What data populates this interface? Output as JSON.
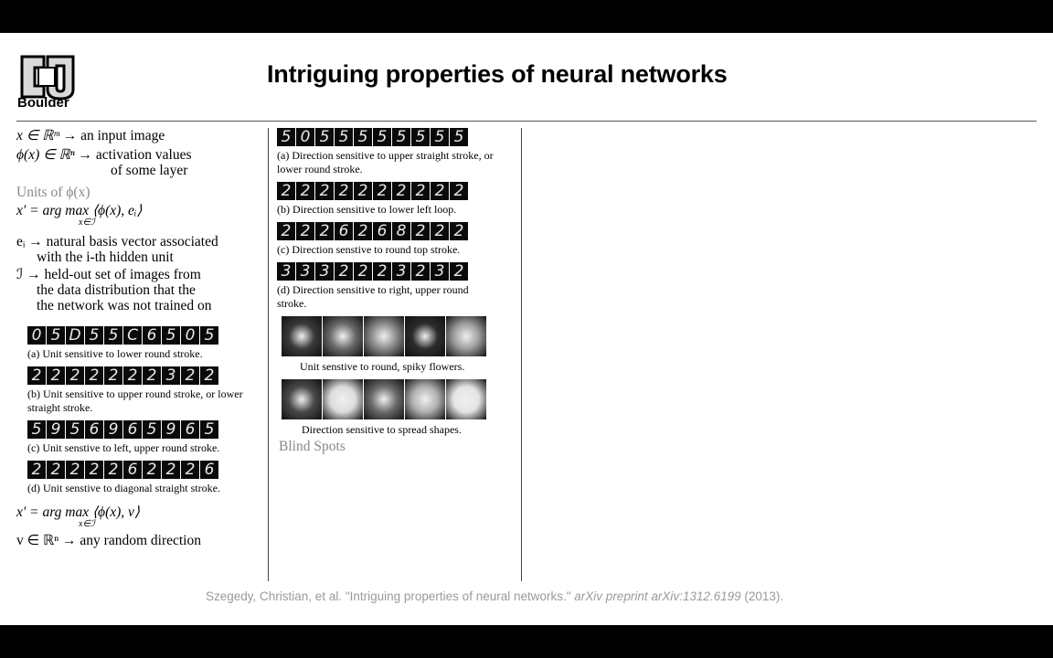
{
  "header": {
    "logo_text": "Boulder",
    "title": "Intriguing properties of neural networks"
  },
  "left": {
    "eq1_rhs": "→ an input image",
    "eq2_rhs": "→ activation values",
    "eq2_cont": "of some layer",
    "units_heading": "Units of ϕ(x)",
    "eq3_lhs": "x′ = arg max ⟨ϕ(x), eᵢ⟩",
    "eq3_sub": "x∈ℐ",
    "ei_line1": "eᵢ → natural basis vector associated",
    "ei_line2": "with the i-th hidden unit",
    "I_line1": "ℐ → held-out set of images from",
    "I_line2": "the data distribution that the",
    "I_line3": "the network was not trained on",
    "eq4_lhs": "x′ = arg max ⟨ϕ(x), v⟩",
    "eq4_sub": "x∈ℐ",
    "eq5": "v ∈ ℝⁿ → any random direction",
    "eq1_lhs": "x ∈ ℝᵐ",
    "eq2_lhs": "ϕ(x) ∈ ℝⁿ"
  },
  "left_figures": [
    {
      "digits": [
        "0",
        "5",
        "D",
        "5",
        "5",
        "C",
        "6",
        "5",
        "0",
        "5"
      ],
      "caption": "(a) Unit sensitive to lower round stroke."
    },
    {
      "digits": [
        "2",
        "2",
        "2",
        "2",
        "2",
        "2",
        "2",
        "3",
        "2",
        "2"
      ],
      "caption": "(b) Unit sensitive to upper round stroke, or lower straight stroke."
    },
    {
      "digits": [
        "5",
        "9",
        "5",
        "6",
        "9",
        "6",
        "5",
        "9",
        "6",
        "5"
      ],
      "caption": "(c) Unit senstive to left, upper round stroke."
    },
    {
      "digits": [
        "2",
        "2",
        "2",
        "2",
        "2",
        "6",
        "2",
        "2",
        "2",
        "6"
      ],
      "caption": "(d) Unit senstive to diagonal straight stroke."
    }
  ],
  "right_figures": [
    {
      "digits": [
        "5",
        "0",
        "5",
        "5",
        "5",
        "5",
        "5",
        "5",
        "5",
        "5"
      ],
      "caption": "(a) Direction sensitive to upper straight stroke, or lower round stroke."
    },
    {
      "digits": [
        "2",
        "2",
        "2",
        "2",
        "2",
        "2",
        "2",
        "2",
        "2",
        "2"
      ],
      "caption": "(b) Direction sensitive to lower left loop."
    },
    {
      "digits": [
        "2",
        "2",
        "2",
        "6",
        "2",
        "6",
        "8",
        "2",
        "2",
        "2"
      ],
      "caption": "(c) Direction senstive to round top stroke."
    },
    {
      "digits": [
        "3",
        "3",
        "3",
        "2",
        "2",
        "2",
        "3",
        "2",
        "3",
        "2"
      ],
      "caption": "(d) Direction sensitive to right, upper round stroke."
    }
  ],
  "photo_rows": [
    {
      "caption": "Unit senstive to round, spiky flowers.",
      "colors": [
        "#3a3a3a",
        "#6a6a6a",
        "#8a8a8a",
        "#2c2c2c",
        "#9c9c9c"
      ]
    },
    {
      "caption": "Direction sensitive to spread shapes.",
      "colors": [
        "#4a4a4a",
        "#dcdcdc",
        "#6c6c6c",
        "#b0b0b0",
        "#e4e4e4"
      ]
    }
  ],
  "blind_spots": "Blind Spots",
  "reference": {
    "authors": "Szegedy, Christian, et al. \"Intriguing properties of neural networks.\" ",
    "venue": "arXiv preprint arXiv:1312.6199",
    "year": " (2013)."
  }
}
